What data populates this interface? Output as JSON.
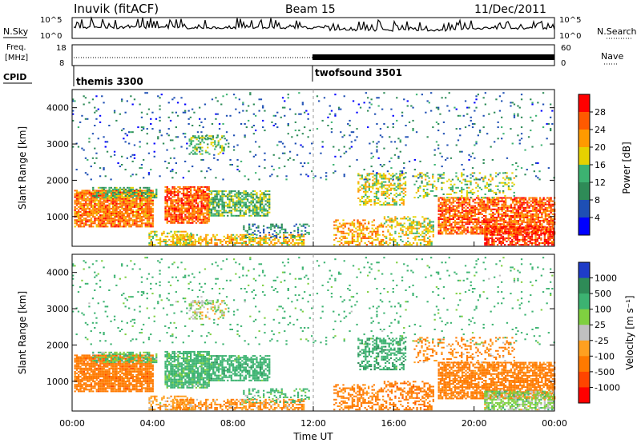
{
  "header": {
    "station": "Inuvik (fitACF)",
    "beam": "Beam 15",
    "date": "11/Dec/2011"
  },
  "top_panels": {
    "nsky_label": "N.Sky",
    "nsearch_label": "N.Search",
    "left_ticks_top": [
      "10^5",
      "10^0"
    ],
    "right_ticks_top": [
      "10^5",
      "10^0"
    ],
    "freq_label_1": "Freq.",
    "freq_label_2": "[MHz]",
    "freq_ticks": [
      "18",
      "8"
    ],
    "nave_label": "Nave",
    "nave_ticks": [
      "60",
      "0"
    ],
    "cpid_label": "CPID",
    "cpid_segments": [
      {
        "name": "themis 3300",
        "start_hour": 0,
        "end_hour": 12
      },
      {
        "name": "twofsound 3501",
        "start_hour": 12,
        "end_hour": 24
      }
    ]
  },
  "axes": {
    "ylabel": "Slant Range [km]",
    "yticks": [
      "1000",
      "2000",
      "3000",
      "4000"
    ],
    "xlabel": "Time UT",
    "xticks": [
      "00:00",
      "04:00",
      "08:00",
      "12:00",
      "16:00",
      "20:00",
      "00:00"
    ]
  },
  "colorbars": {
    "power": {
      "label": "Power [dB]",
      "ticks": [
        "28",
        "24",
        "20",
        "16",
        "12",
        "8",
        "4"
      ],
      "colors": [
        "#ff0000",
        "#ff5a00",
        "#ff9a00",
        "#e6d200",
        "#3cb371",
        "#2e8b57",
        "#1e4fb4",
        "#0000ff"
      ]
    },
    "velocity": {
      "label": "Velocity [m s⁻¹]",
      "ticks": [
        "1000",
        "500",
        "100",
        "25",
        "-25",
        "-100",
        "-500",
        "-1000"
      ],
      "colors": [
        "#1e3cc8",
        "#2e8b57",
        "#3cb371",
        "#7fd040",
        "#c0c0c0",
        "#ffa020",
        "#ff7a00",
        "#ff4500",
        "#ff0000"
      ]
    }
  },
  "chart_data": {
    "type": "heatmap",
    "x_range_hours": [
      0,
      24
    ],
    "y_range_km": [
      180,
      4500
    ],
    "regions": [
      {
        "t0": 0.1,
        "t1": 4.0,
        "r0": 700,
        "r1": 1700,
        "density": 0.85,
        "pow": 24,
        "vel": -300
      },
      {
        "t0": 1.0,
        "t1": 4.2,
        "r0": 1500,
        "r1": 1800,
        "density": 0.6,
        "pow": 14,
        "vel": 100
      },
      {
        "t0": 3.8,
        "t1": 6.0,
        "r0": 200,
        "r1": 600,
        "density": 0.5,
        "pow": 18,
        "vel": -60
      },
      {
        "t0": 4.6,
        "t1": 6.8,
        "r0": 800,
        "r1": 1800,
        "density": 0.8,
        "pow": 26,
        "vel": 200
      },
      {
        "t0": 6.8,
        "t1": 9.8,
        "r0": 1000,
        "r1": 1700,
        "density": 0.7,
        "pow": 14,
        "vel": 300
      },
      {
        "t0": 5.8,
        "t1": 7.6,
        "r0": 2700,
        "r1": 3200,
        "density": 0.35,
        "pow": 14,
        "vel": 0
      },
      {
        "t0": 5.0,
        "t1": 11.5,
        "r0": 200,
        "r1": 500,
        "density": 0.55,
        "pow": 20,
        "vel": -100
      },
      {
        "t0": 8.5,
        "t1": 11.8,
        "r0": 400,
        "r1": 800,
        "density": 0.3,
        "pow": 10,
        "vel": 150
      },
      {
        "t0": 13.0,
        "t1": 15.5,
        "r0": 200,
        "r1": 900,
        "density": 0.45,
        "pow": 22,
        "vel": -200
      },
      {
        "t0": 14.2,
        "t1": 16.6,
        "r0": 1300,
        "r1": 2200,
        "density": 0.5,
        "pow": 18,
        "vel": 400
      },
      {
        "t0": 15.5,
        "t1": 18.0,
        "r0": 200,
        "r1": 1000,
        "density": 0.45,
        "pow": 18,
        "vel": -300
      },
      {
        "t0": 18.2,
        "t1": 24.0,
        "r0": 500,
        "r1": 1500,
        "density": 0.75,
        "pow": 26,
        "vel": -250
      },
      {
        "t0": 20.5,
        "t1": 24.0,
        "r0": 200,
        "r1": 700,
        "density": 0.7,
        "pow": 28,
        "vel": 50
      },
      {
        "t0": 17.0,
        "t1": 22.0,
        "r0": 1500,
        "r1": 2200,
        "density": 0.25,
        "pow": 16,
        "vel": -150
      },
      {
        "t0": 0.0,
        "t1": 24.0,
        "r0": 2000,
        "r1": 4400,
        "density": 0.05,
        "pow": 8,
        "vel": 200
      }
    ]
  }
}
